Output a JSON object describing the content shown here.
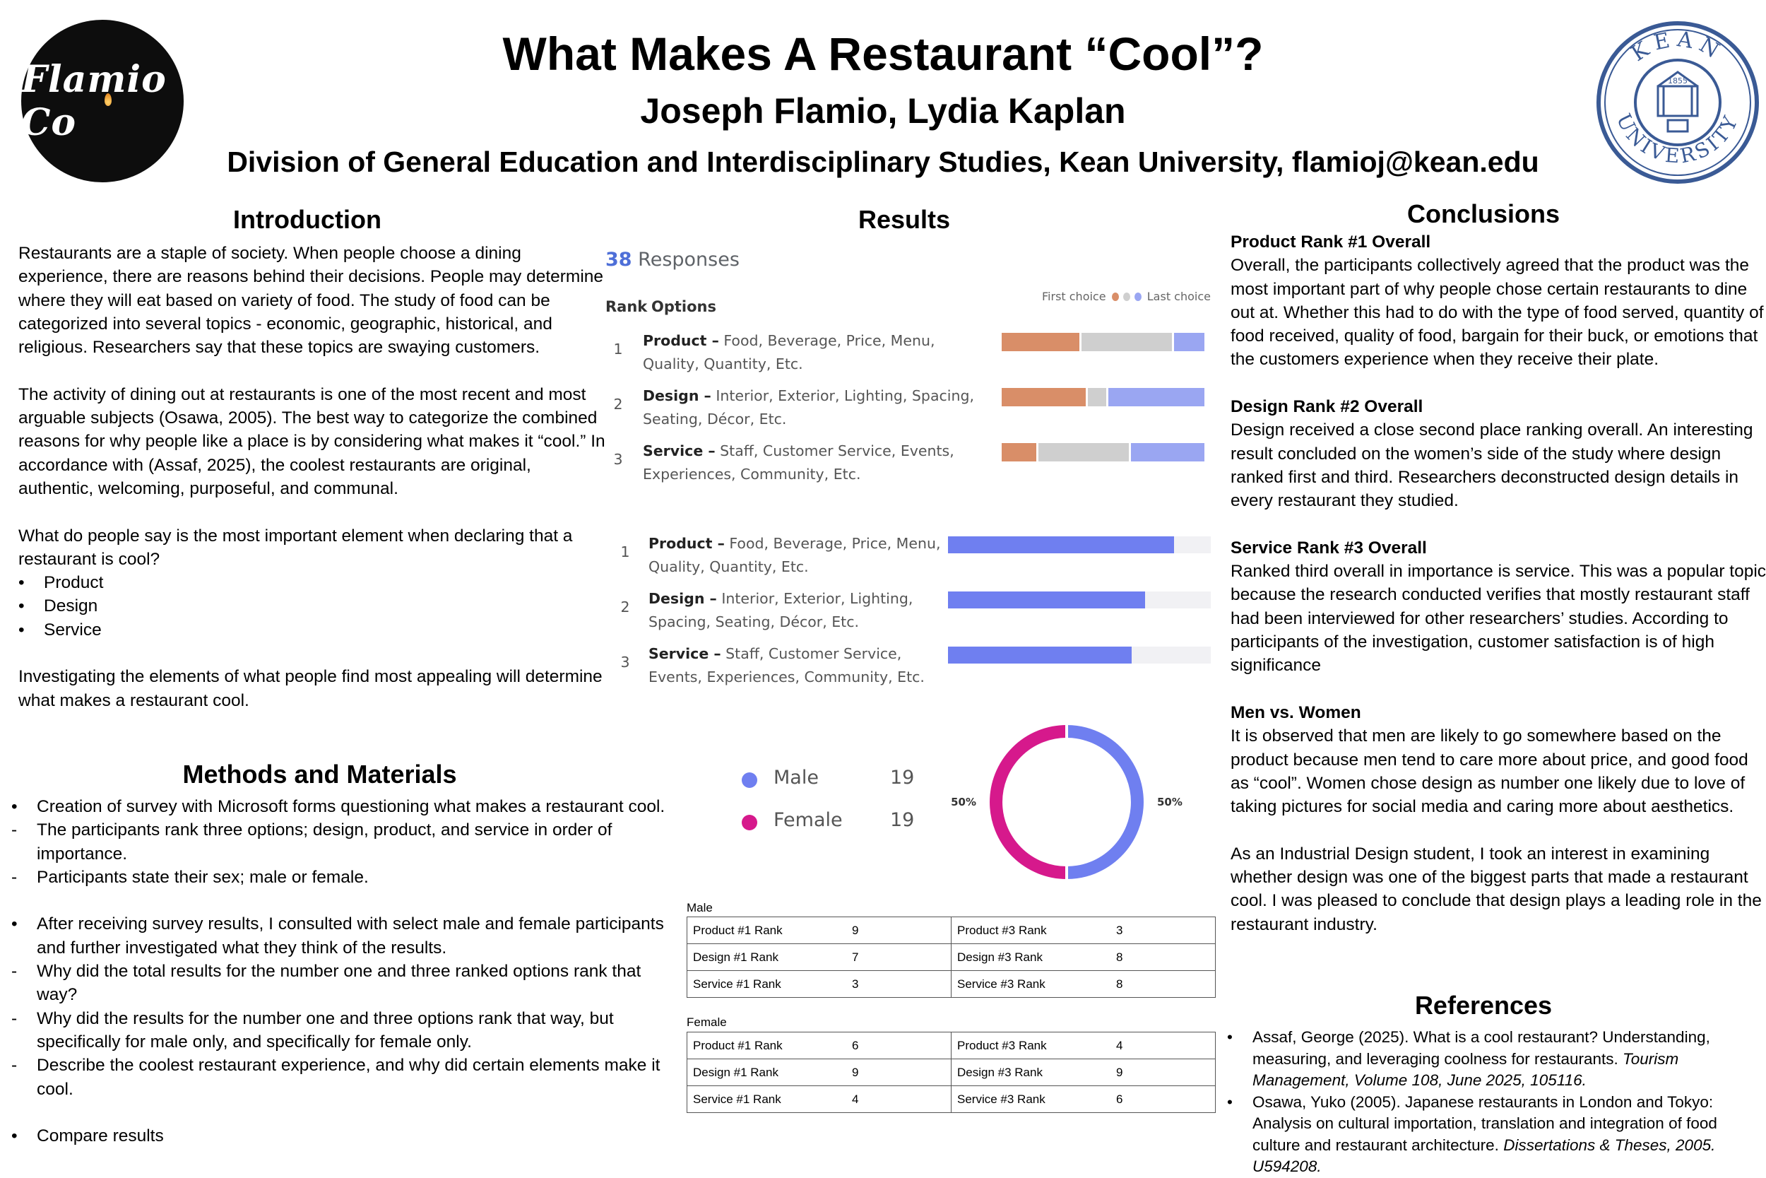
{
  "header": {
    "title": "What Makes A Restaurant “Cool”?",
    "authors": "Joseph Flamio, Lydia Kaplan",
    "affiliation": "Division of General Education and Interdisciplinary Studies, Kean University, flamioj@kean.edu",
    "logo_left_text": "Flamio Co",
    "logo_right_text": "KEAN UNIVERSITY",
    "logo_right_year": "1855"
  },
  "intro": {
    "heading": "Introduction",
    "p1": "Restaurants are a staple of society. When people choose a dining experience, there are reasons behind their decisions. People may determine where they will eat based on variety of food. The study of food can be categorized into several topics - economic, geographic, historical, and religious. Researchers say that these topics are swaying customers.",
    "p2": "The activity of dining out at restaurants is one of the most recent and most arguable subjects (Osawa, 2005). The best way to categorize the combined reasons for why people like a place is by considering what makes it “cool.” In accordance with (Assaf, 2025), the coolest restaurants are original, authentic, welcoming, purposeful, and communal.",
    "p3": "What do people say is the most important element when declaring that a restaurant is cool?",
    "bullets": [
      "Product",
      "Design",
      "Service"
    ],
    "bullet_marker": "•",
    "p4": "Investigating the elements of what people find most appealing will determine what makes a restaurant cool."
  },
  "methods": {
    "heading": "Methods and Materials",
    "items": [
      {
        "marker": "•",
        "text": "Creation of survey with Microsoft forms questioning what makes a restaurant cool."
      },
      {
        "marker": "-",
        "text": "The participants rank three options; design, product, and service in order of importance."
      },
      {
        "marker": "-",
        "text": "Participants state their sex; male or female."
      },
      {
        "marker": "•",
        "text": "After receiving survey results, I consulted with select male and female participants and further investigated what they think of the results."
      },
      {
        "marker": "-",
        "text": "Why did the total results for the number one and three ranked options rank that way?"
      },
      {
        "marker": "-",
        "text": "Why did the results for the number one and three options rank that way, but specifically for male only, and specifically for female only."
      },
      {
        "marker": "-",
        "text": "Describe the coolest restaurant experience, and why did certain elements make it cool."
      },
      {
        "marker": "•",
        "text": "Compare results"
      }
    ]
  },
  "results": {
    "heading": "Results",
    "responses_count": "38",
    "responses_label": "Responses",
    "col_rank": "Rank",
    "col_options": "Options",
    "legend_first": "First choice",
    "legend_last": "Last choice",
    "colors": {
      "first": "#d98e68",
      "middle": "#cfcfcf",
      "last": "#9aa6f2",
      "bar": "#6f7ff0",
      "male": "#6f7ff0",
      "female": "#d6198c"
    },
    "rank_options": [
      {
        "rank": "1",
        "name": "Product –",
        "desc": "Food, Beverage, Price, Menu, Quality, Quantity, Etc.",
        "first": 0.39,
        "middle": 0.45,
        "last": 0.16
      },
      {
        "rank": "2",
        "name": "Design –",
        "desc": "Interior, Exterior, Lighting, Spacing, Seating, Décor, Etc.",
        "first": 0.42,
        "middle": 0.1,
        "last": 0.48
      },
      {
        "rank": "3",
        "name": "Service –",
        "desc": "Staff, Customer Service, Events, Experiences, Community, Etc.",
        "first": 0.18,
        "middle": 0.45,
        "last": 0.37
      }
    ],
    "rank_scores": [
      {
        "rank": "1",
        "name": "Product –",
        "desc": "Food, Beverage, Price, Menu, Quality, Quantity, Etc.",
        "score": 0.86
      },
      {
        "rank": "2",
        "name": "Design –",
        "desc": "Interior, Exterior, Lighting, Spacing, Seating, Décor, Etc.",
        "score": 0.75
      },
      {
        "rank": "3",
        "name": "Service –",
        "desc": "Staff, Customer Service, Events, Experiences, Community, Etc.",
        "score": 0.7
      }
    ],
    "gender": [
      {
        "label": "Male",
        "count": "19",
        "pct": "50%"
      },
      {
        "label": "Female",
        "count": "19",
        "pct": "50%"
      }
    ],
    "tables": [
      {
        "title": "Male",
        "rows": [
          [
            "Product #1 Rank",
            "9",
            "Product #3 Rank",
            "3"
          ],
          [
            "Design #1 Rank",
            "7",
            "Design #3 Rank",
            "8"
          ],
          [
            "Service #1 Rank",
            "3",
            "Service #3 Rank",
            "8"
          ]
        ]
      },
      {
        "title": "Female",
        "rows": [
          [
            "Product #1 Rank",
            "6",
            "Product #3 Rank",
            "4"
          ],
          [
            "Design #1 Rank",
            "9",
            "Design #3 Rank",
            "9"
          ],
          [
            "Service #1 Rank",
            "4",
            "Service #3 Rank",
            "6"
          ]
        ]
      }
    ]
  },
  "chart_data": [
    {
      "type": "bar",
      "title": "",
      "categories": [
        "Product",
        "Design",
        "Service"
      ],
      "series": [
        {
          "name": "First choice",
          "values": [
            0.39,
            0.42,
            0.18
          ]
        },
        {
          "name": "Last choice",
          "values": [
            0.16,
            0.48,
            0.37
          ]
        }
      ]
    },
    {
      "type": "bar",
      "title": "",
      "categories": [
        "Product",
        "Design",
        "Service"
      ],
      "values": [
        0.86,
        0.75,
        0.7
      ]
    },
    {
      "type": "pie",
      "title": "",
      "categories": [
        "Male",
        "Female"
      ],
      "values": [
        19,
        19
      ]
    }
  ],
  "conclusions": {
    "heading": "Conclusions",
    "sections": [
      {
        "sub": "Product Rank #1 Overall",
        "text": "Overall, the participants collectively agreed that the product was the most important part of why people chose certain restaurants to dine out at. Whether this had to do with the type of food served, quantity of food received, quality of food, bargain for their buck, or emotions that the customers experience when they receive their plate."
      },
      {
        "sub": "Design Rank #2 Overall",
        "text": "Design received a close second place ranking overall. An interesting result concluded on the women’s side of the study where design ranked first and third. Researchers deconstructed design details in every restaurant they studied."
      },
      {
        "sub": "Service Rank #3 Overall",
        "text": "Ranked third overall in importance is service. This was a popular topic because the research conducted verifies that mostly restaurant staff had been interviewed for other researchers’ studies. According to participants of the investigation, customer satisfaction is of high significance"
      },
      {
        "sub": "Men vs. Women",
        "text": "It is observed that men are likely to go somewhere based on the product because men tend to care more about price, and good food as “cool”. Women chose design as number one likely due to love of taking pictures for social media and caring more about aesthetics."
      },
      {
        "sub": "",
        "text": "As an Industrial Design student, I took an interest in examining whether design was one of the biggest parts that made a restaurant cool. I was pleased to conclude that design plays a leading role in the restaurant industry."
      }
    ]
  },
  "references": {
    "heading": "References",
    "items": [
      {
        "text": "Assaf, George (2025). What is a cool restaurant? Understanding, measuring, and leveraging coolness for restaurants. ",
        "italic": "Tourism Management, Volume 108, June 2025, 105116."
      },
      {
        "text": "Osawa, Yuko (2005). Japanese restaurants in London and Tokyo: Analysis on cultural importation, translation and integration of food culture and restaurant architecture. ",
        "italic": "Dissertations & Theses, 2005. U594208."
      }
    ]
  }
}
